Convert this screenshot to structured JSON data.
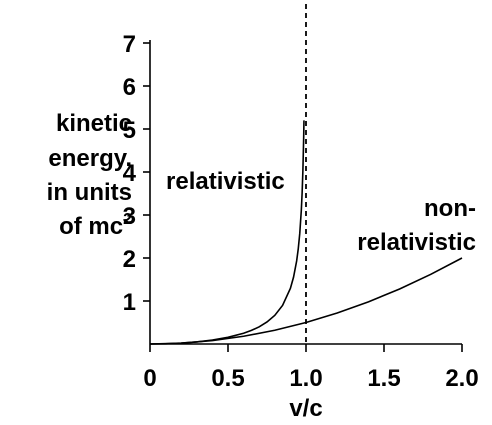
{
  "chart_data": {
    "type": "line",
    "xlabel": "v/c",
    "ylabel_lines": [
      "kinetic",
      "energy,",
      "in units"
    ],
    "ylabel_last_base": "of mc",
    "ylabel_last_sup": "2",
    "xlim": [
      0,
      2.0
    ],
    "ylim": [
      0,
      7
    ],
    "x_ticks": [
      0,
      0.5,
      1.0,
      1.5,
      2.0
    ],
    "x_tick_labels": [
      "0",
      "0.5",
      "1.0",
      "1.5",
      "2.0"
    ],
    "y_ticks": [
      1,
      2,
      3,
      4,
      5,
      6,
      7
    ],
    "y_tick_labels": [
      "1",
      "2",
      "3",
      "4",
      "5",
      "6",
      "7"
    ],
    "grid": false,
    "vertical_reference_line": {
      "x": 1.0,
      "style": "dashed"
    },
    "series": [
      {
        "name": "relativistic",
        "label_lines": [
          "relativistic"
        ],
        "x": [
          0,
          0.1,
          0.2,
          0.3,
          0.4,
          0.5,
          0.6,
          0.65,
          0.7,
          0.75,
          0.8,
          0.85,
          0.9,
          0.92,
          0.94,
          0.95,
          0.96,
          0.97,
          0.975,
          0.98,
          0.985,
          0.987
        ],
        "y": [
          0,
          0.005,
          0.021,
          0.048,
          0.091,
          0.155,
          0.25,
          0.316,
          0.4,
          0.512,
          0.667,
          0.898,
          1.294,
          1.552,
          1.931,
          2.203,
          2.571,
          3.113,
          3.501,
          4.025,
          4.789,
          5.2
        ]
      },
      {
        "name": "non-relativistic",
        "label_lines": [
          "non-",
          "relativistic"
        ],
        "x": [
          0,
          0.2,
          0.4,
          0.6,
          0.8,
          1.0,
          1.2,
          1.4,
          1.6,
          1.8,
          2.0
        ],
        "y": [
          0,
          0.02,
          0.08,
          0.18,
          0.32,
          0.5,
          0.72,
          0.98,
          1.28,
          1.62,
          2.0
        ]
      }
    ]
  }
}
